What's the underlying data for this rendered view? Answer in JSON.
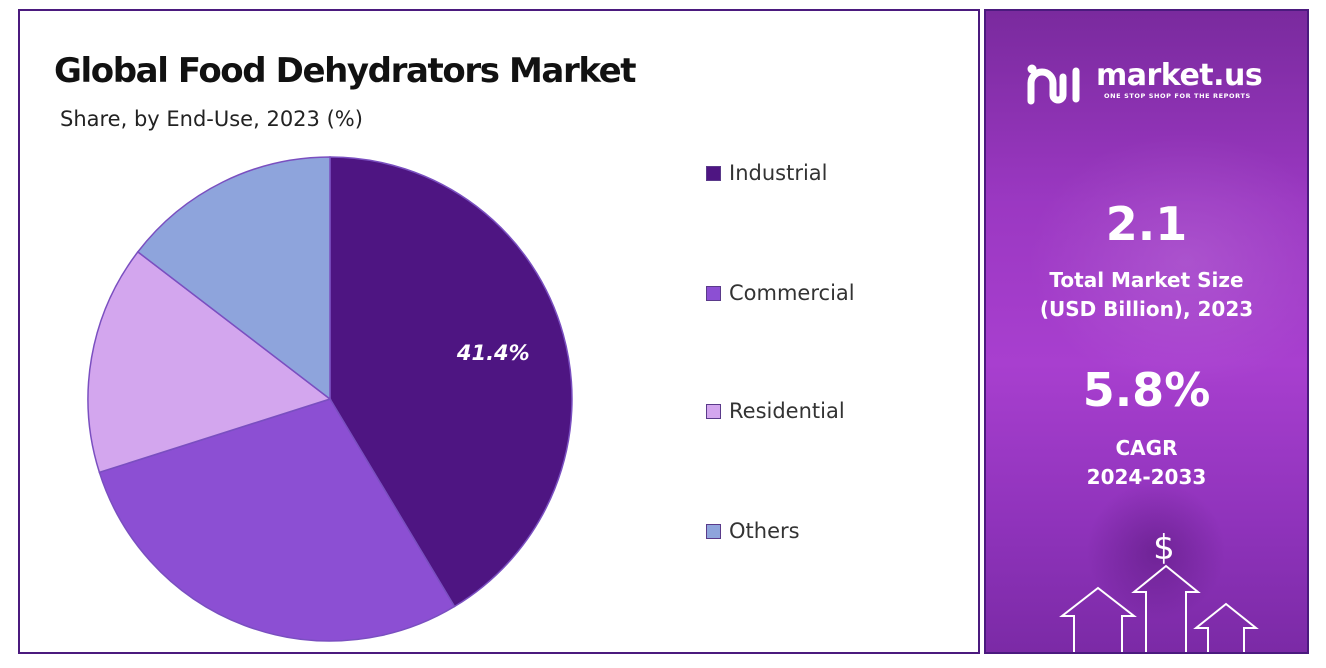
{
  "chart_data": {
    "type": "pie",
    "title": "Global Food Dehydrators Market",
    "subtitle": "Share, by End-Use, 2023 (%)",
    "categories": [
      "Industrial",
      "Commercial",
      "Residential",
      "Others"
    ],
    "values": [
      41.4,
      28.7,
      15.3,
      14.6
    ],
    "data_labels": [
      "41.4%",
      "",
      "",
      ""
    ],
    "colors": [
      "#4e1582",
      "#8c4fd3",
      "#d3a6ee",
      "#8ea4dc"
    ],
    "legend_placement": "right"
  },
  "sidebar": {
    "logo_name": "market.us",
    "logo_tagline": "ONE STOP SHOP FOR THE REPORTS",
    "market_size_value": "2.1",
    "market_size_caption_line1": "Total Market Size",
    "market_size_caption_line2": "(USD Billion), 2023",
    "cagr_value": "5.8%",
    "cagr_caption_line1": "CAGR",
    "cagr_caption_line2": "2024-2033",
    "dollar_symbol": "$",
    "icons": [
      "market-us-logo-icon",
      "dollar-icon",
      "up-arrow-icon"
    ]
  }
}
